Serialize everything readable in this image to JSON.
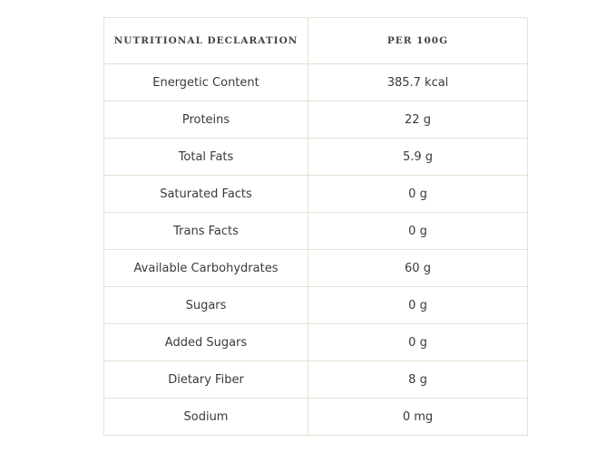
{
  "table": {
    "headers": [
      "NUTRITIONAL DECLARATION",
      "PER 100G"
    ],
    "rows": [
      [
        "Energetic Content",
        "385.7 kcal"
      ],
      [
        "Proteins",
        "22 g"
      ],
      [
        "Total Fats",
        "5.9 g"
      ],
      [
        "Saturated Facts",
        "0 g"
      ],
      [
        "Trans Facts",
        "0 g"
      ],
      [
        "Available Carbohydrates",
        "60 g"
      ],
      [
        "Sugars",
        "0 g"
      ],
      [
        "Added Sugars",
        "0 g"
      ],
      [
        "Dietary Fiber",
        "8 g"
      ],
      [
        "Sodium",
        "0 mg"
      ]
    ]
  }
}
